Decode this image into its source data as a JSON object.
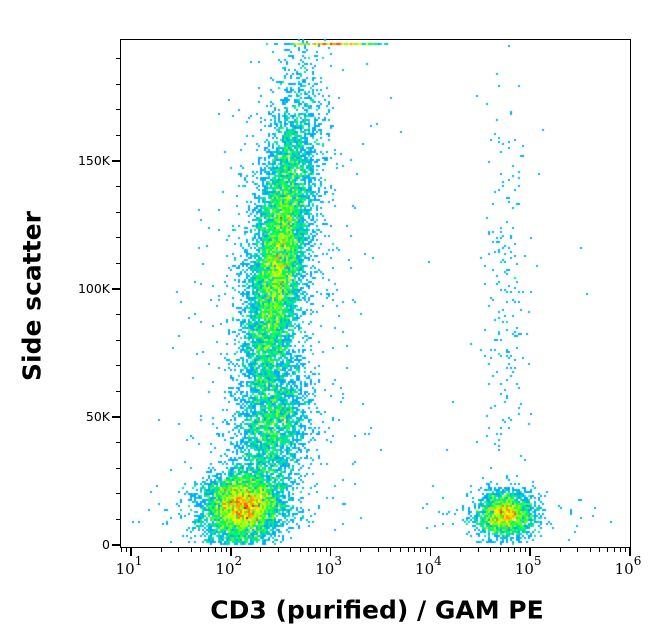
{
  "chart_data": {
    "type": "scatter",
    "subtype": "flow-cytometry-density-dot-plot",
    "title": "",
    "xlabel": "CD3 (purified) / GAM PE",
    "ylabel": "Side scatter",
    "x_scale": "log",
    "xlim": [
      7,
      1100000
    ],
    "ylim": [
      -1500,
      196000
    ],
    "x_ticks": [
      {
        "base": "10",
        "exp": "1",
        "value": 10
      },
      {
        "base": "10",
        "exp": "2",
        "value": 100
      },
      {
        "base": "10",
        "exp": "3",
        "value": 1000
      },
      {
        "base": "10",
        "exp": "4",
        "value": 10000
      },
      {
        "base": "10",
        "exp": "5",
        "value": 100000
      },
      {
        "base": "10",
        "exp": "6",
        "value": 1000000
      }
    ],
    "y_ticks": [
      {
        "label": "0",
        "value": 0
      },
      {
        "label": "50K",
        "value": 50000
      },
      {
        "label": "100K",
        "value": 100000
      },
      {
        "label": "150K",
        "value": 150000
      }
    ],
    "y_minor_tick_step": 10000,
    "grid": false,
    "legend": null,
    "color_scale": [
      "#0000ff",
      "#00c8ff",
      "#00ff40",
      "#ffff00",
      "#ff0000"
    ],
    "populations": [
      {
        "name": "CD3-negative granulocytes (high SSC)",
        "center_log10_x": 2.48,
        "center_y": 112000,
        "spread_log10_x": 0.14,
        "spread_y": 32000,
        "tilt": 0.9,
        "events": 9000,
        "peak_density": "red"
      },
      {
        "name": "CD3-negative lymphocytes/monocytes (low SSC)",
        "center_log10_x": 2.12,
        "center_y": 15000,
        "spread_log10_x": 0.2,
        "spread_y": 7000,
        "tilt": 0.35,
        "events": 5000,
        "peak_density": "red"
      },
      {
        "name": "CD3-positive T lymphocytes",
        "center_log10_x": 4.75,
        "center_y": 12000,
        "spread_log10_x": 0.14,
        "spread_y": 4500,
        "tilt": 0.0,
        "events": 2200,
        "peak_density": "red"
      },
      {
        "name": "bridge between low and high SSC",
        "center_log10_x": 2.45,
        "center_y": 45000,
        "spread_log10_x": 0.17,
        "spread_y": 14000,
        "tilt": 1.0,
        "events": 2200,
        "peak_density": "green"
      },
      {
        "name": "sparse CD3-positive high SSC events",
        "center_log10_x": 4.75,
        "center_y": 95000,
        "spread_log10_x": 0.12,
        "spread_y": 40000,
        "tilt": 0.0,
        "events": 220,
        "peak_density": "blue"
      },
      {
        "name": "top-edge saturated events",
        "center_log10_x": 3.0,
        "center_y": 196000,
        "spread_log10_x": 0.25,
        "spread_y": 0,
        "tilt": 0.0,
        "events": 300,
        "peak_density": "red"
      }
    ]
  }
}
